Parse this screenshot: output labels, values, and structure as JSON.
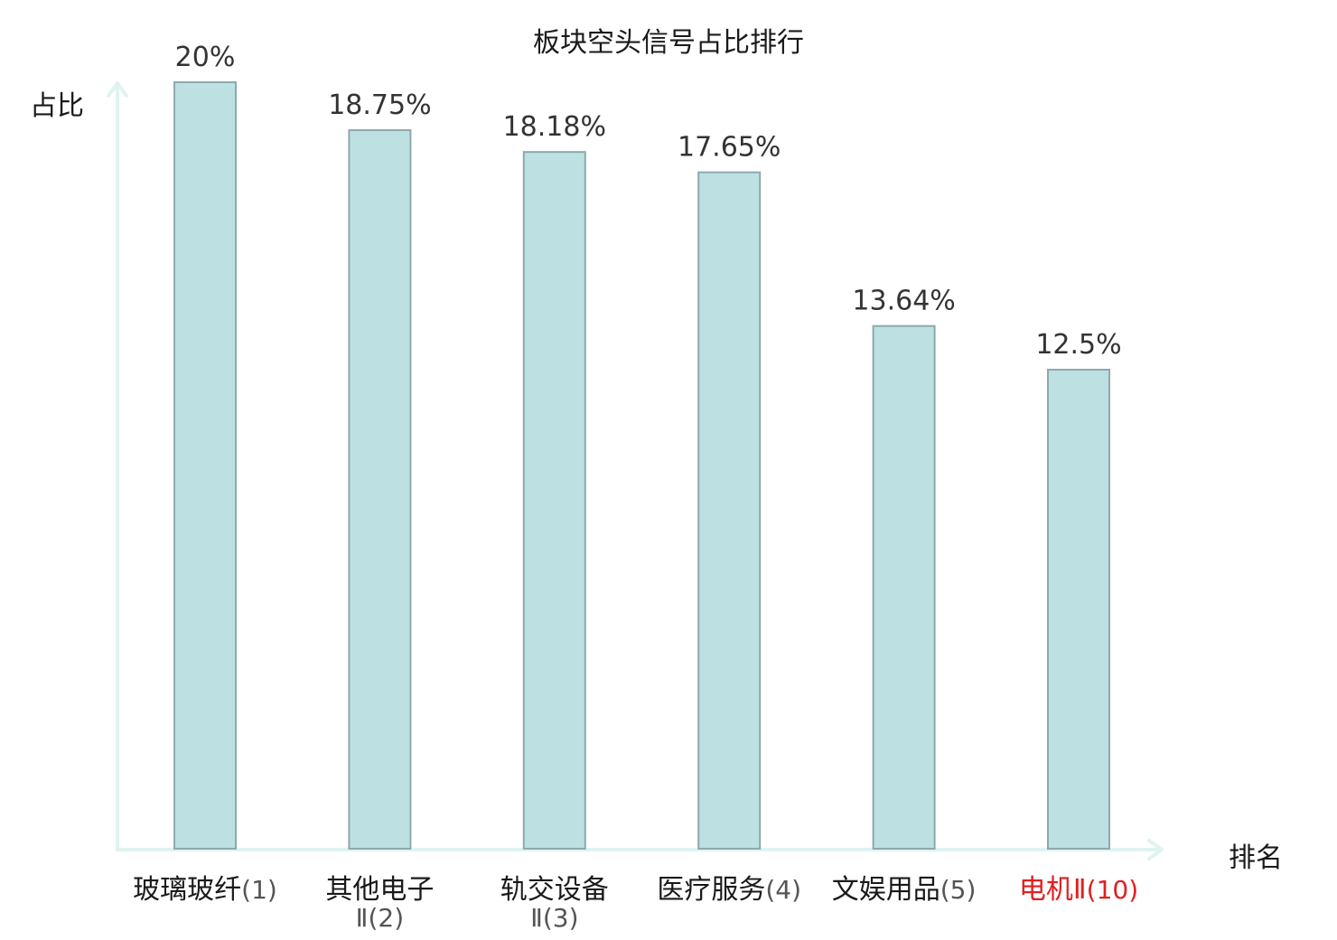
{
  "chart_data": {
    "type": "bar",
    "title": "板块空头信号占比排行",
    "ylabel": "占比",
    "xlabel": "排名",
    "ylim": [
      0,
      20
    ],
    "grid": false,
    "legend": "none",
    "categories": [
      {
        "name": "玻璃玻纤",
        "rank": "(1)",
        "highlight": false
      },
      {
        "name": "其他电子",
        "name_line2": "Ⅱ",
        "rank": "(2)",
        "highlight": false
      },
      {
        "name": "轨交设备",
        "name_line2": "Ⅱ",
        "rank": "(3)",
        "highlight": false
      },
      {
        "name": "医疗服务",
        "rank": "(4)",
        "highlight": false
      },
      {
        "name": "文娱用品",
        "rank": "(5)",
        "highlight": false
      },
      {
        "name": "电机Ⅱ",
        "rank": "(10)",
        "highlight": true
      }
    ],
    "values": [
      20,
      18.75,
      18.18,
      17.65,
      13.64,
      12.5
    ],
    "value_labels": [
      "20%",
      "18.75%",
      "18.18%",
      "17.65%",
      "13.64%",
      "12.5%"
    ]
  },
  "colors": {
    "bar_fill": "#bde0e2",
    "bar_stroke": "#8ea9ab",
    "axis": "#e0f3f0",
    "text": "#333333",
    "label_text": "#1a1a1a",
    "rank_text": "#555555",
    "highlight": "#e02020"
  }
}
